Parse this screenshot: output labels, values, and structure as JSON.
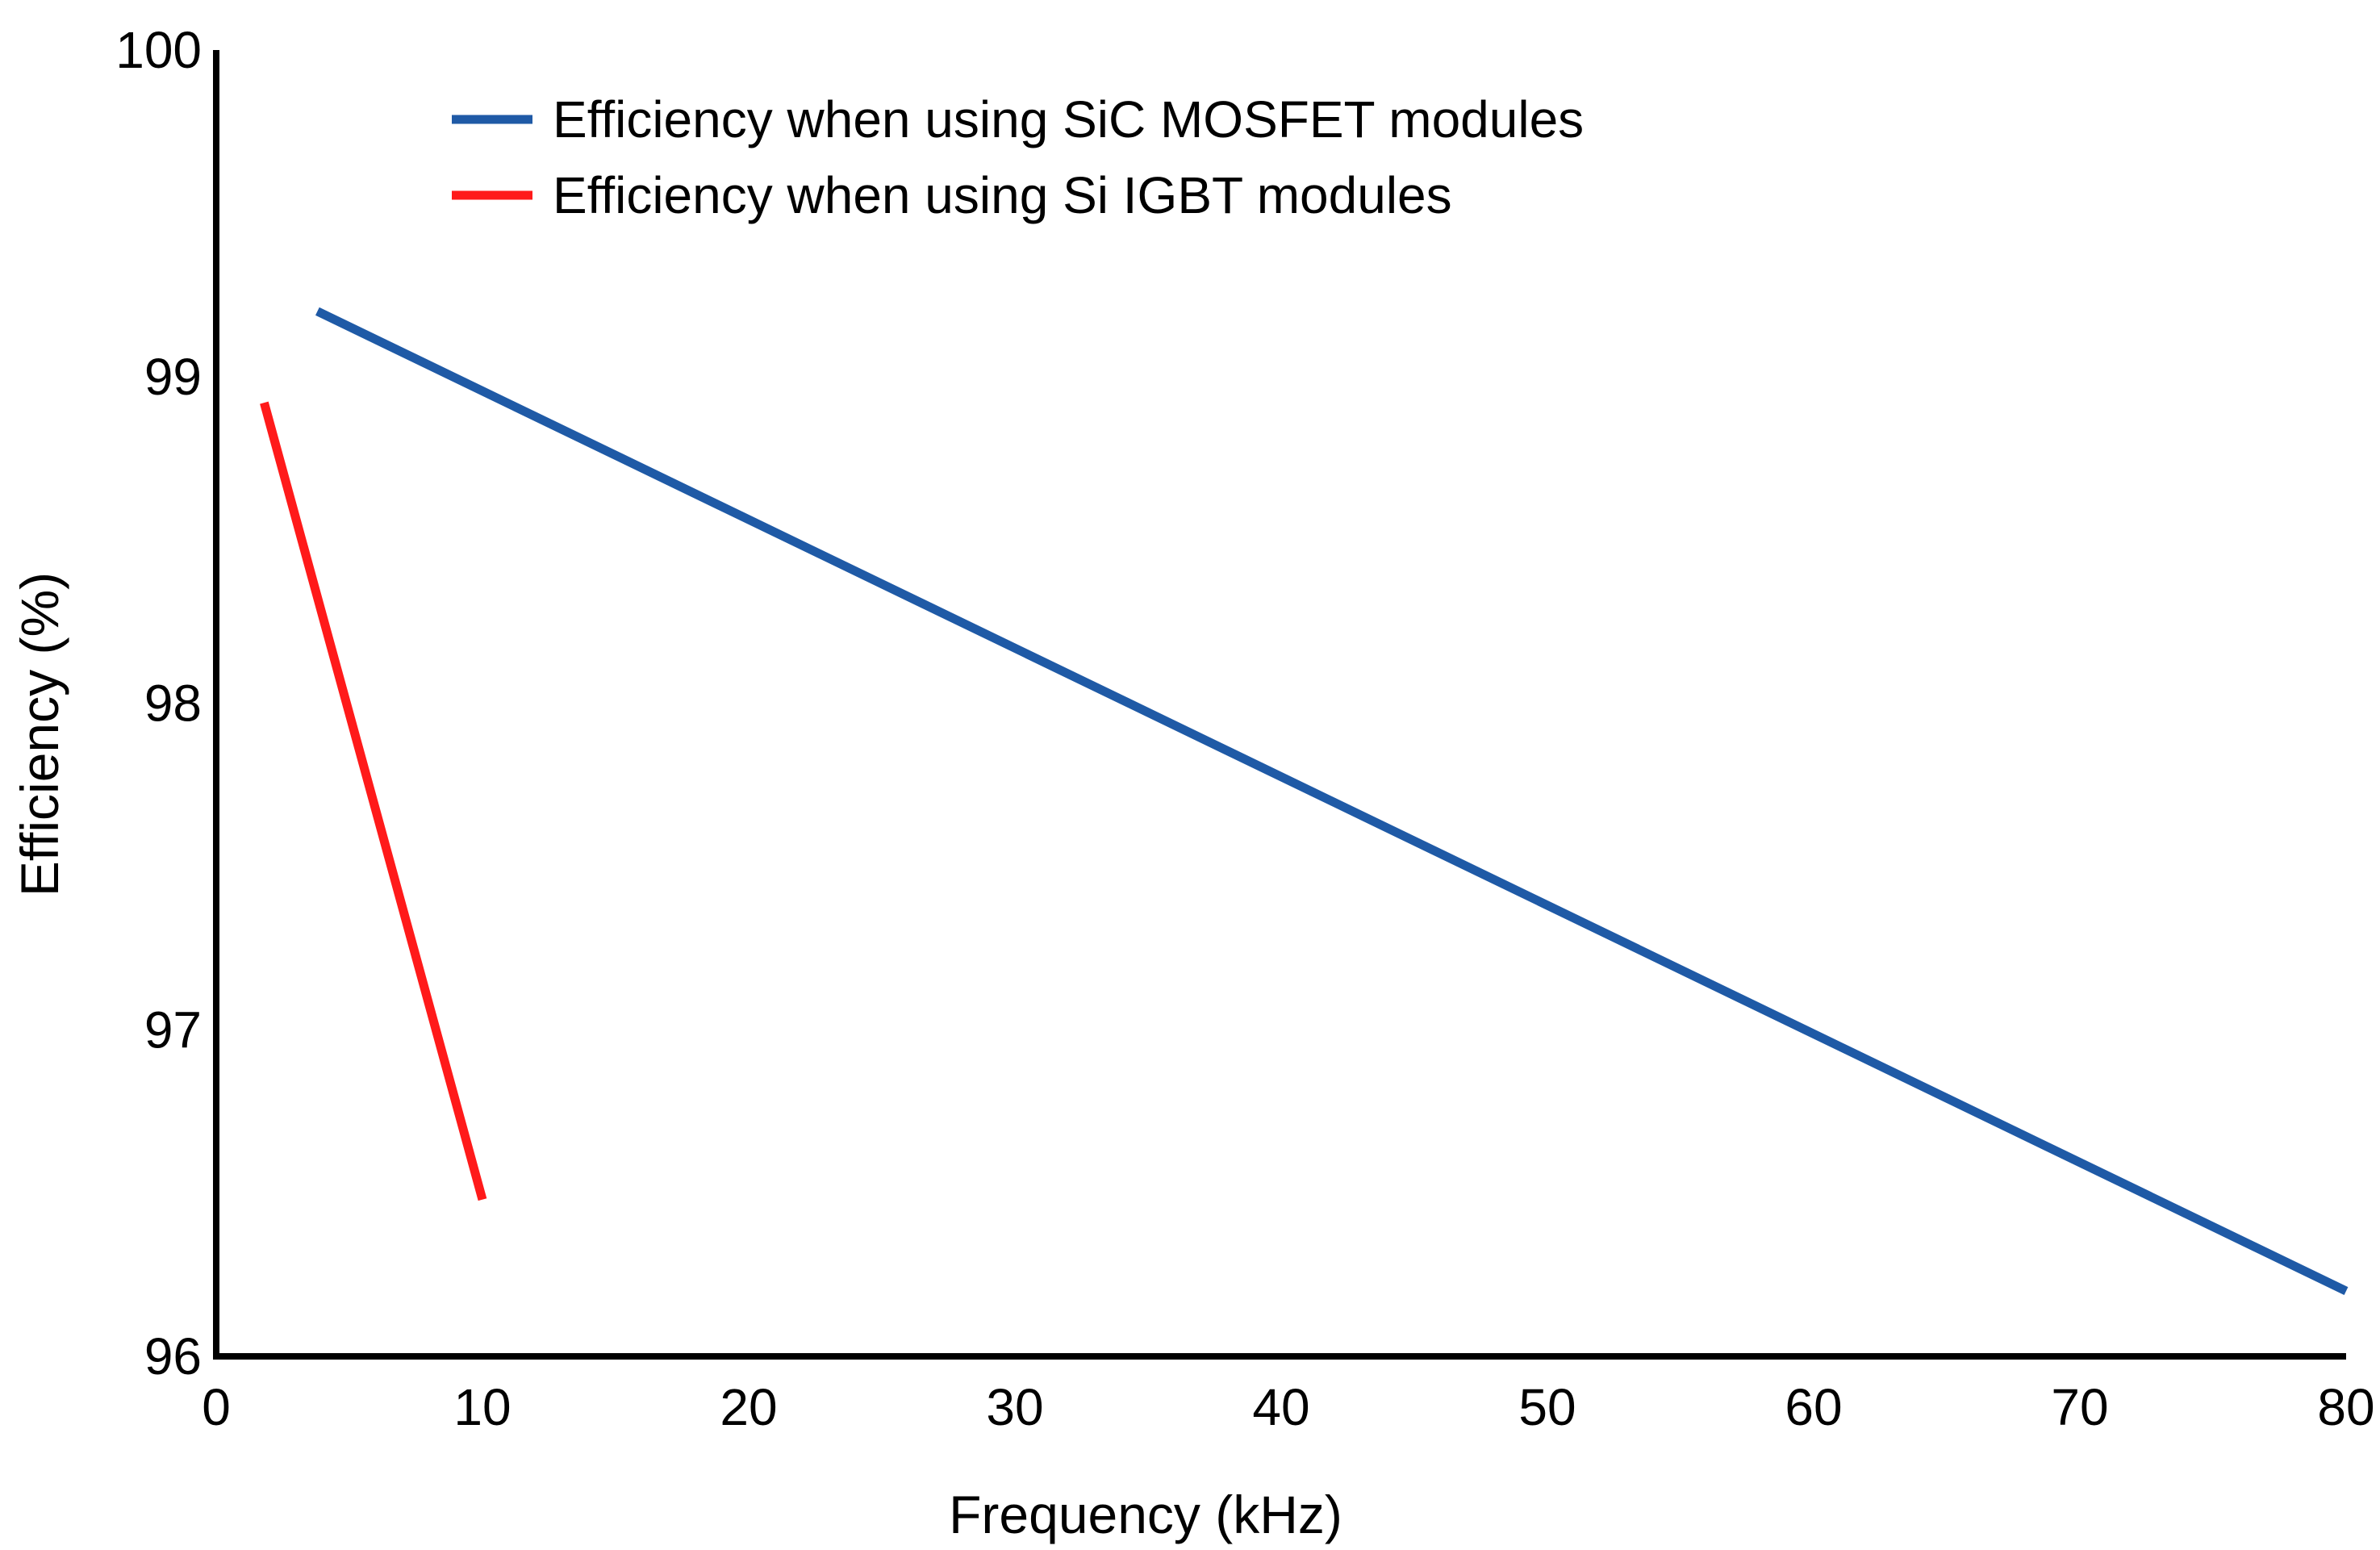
{
  "chart_data": {
    "type": "line",
    "title": "",
    "xlabel": "Frequency (kHz)",
    "ylabel": "Efficiency (%)",
    "xlim": [
      0,
      80
    ],
    "ylim": [
      96,
      100
    ],
    "xticks": [
      0,
      10,
      20,
      30,
      40,
      50,
      60,
      70,
      80
    ],
    "xtick_labels": [
      "0",
      "10",
      "20",
      "30",
      "40",
      "50",
      "60",
      "70",
      "80"
    ],
    "yticks": [
      96,
      97,
      98,
      99,
      100
    ],
    "ytick_labels": [
      "96",
      "97",
      "98",
      "99",
      "100"
    ],
    "grid": false,
    "legend_position": "top-left",
    "series": [
      {
        "name": "Efficiency when using SiC MOSFET modules",
        "color": "#1F5AA6",
        "x": [
          3.8,
          80
        ],
        "y": [
          99.2,
          96.2
        ]
      },
      {
        "name": "Efficiency when using Si IGBT modules",
        "color": "#FF1A1A",
        "x": [
          1.8,
          10
        ],
        "y": [
          98.92,
          96.48
        ]
      }
    ]
  }
}
